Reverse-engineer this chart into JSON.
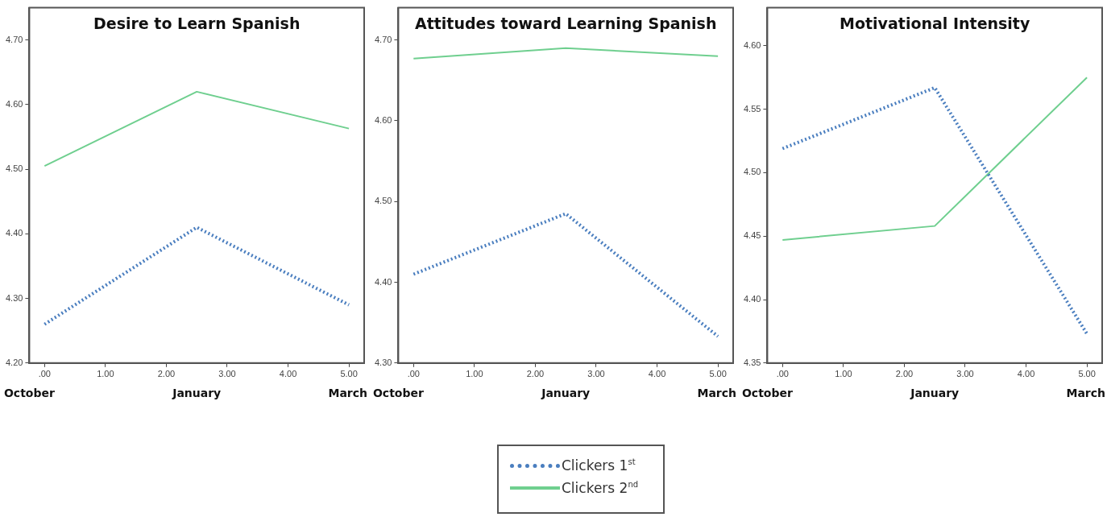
{
  "chart_data": [
    {
      "type": "line",
      "title": "Desire to Learn Spanish",
      "x": [
        0,
        2.5,
        5
      ],
      "xlim": [
        -0.25,
        5.25
      ],
      "xticks": [
        {
          "value": 0,
          "label": ".00"
        },
        {
          "value": 1,
          "label": "1.00"
        },
        {
          "value": 2,
          "label": "2.00"
        },
        {
          "value": 3,
          "label": "3.00"
        },
        {
          "value": 4,
          "label": "4.00"
        },
        {
          "value": 5,
          "label": "5.00"
        }
      ],
      "ylim": [
        4.2,
        4.75
      ],
      "yticks": [
        {
          "value": 4.2,
          "label": "4.20"
        },
        {
          "value": 4.3,
          "label": "4.30"
        },
        {
          "value": 4.4,
          "label": "4.40"
        },
        {
          "value": 4.5,
          "label": "4.50"
        },
        {
          "value": 4.6,
          "label": "4.60"
        },
        {
          "value": 4.7,
          "label": "4.70"
        }
      ],
      "grid": false,
      "marker": "none",
      "annotations": [
        "October",
        "January",
        "March"
      ],
      "series": [
        {
          "color": "#4a7ebf",
          "line_style": "dotted",
          "values": [
            4.26,
            4.41,
            4.29
          ]
        },
        {
          "color": "#6fcf8f",
          "line_style": "solid",
          "values": [
            4.505,
            4.62,
            4.563
          ]
        }
      ]
    },
    {
      "type": "line",
      "title": "Attitudes toward Learning Spanish",
      "x": [
        0,
        2.5,
        5
      ],
      "xlim": [
        -0.25,
        5.25
      ],
      "xticks": [
        {
          "value": 0,
          "label": ".00"
        },
        {
          "value": 1,
          "label": "1.00"
        },
        {
          "value": 2,
          "label": "2.00"
        },
        {
          "value": 3,
          "label": "3.00"
        },
        {
          "value": 4,
          "label": "4.00"
        },
        {
          "value": 5,
          "label": "5.00"
        }
      ],
      "ylim": [
        4.3,
        4.74
      ],
      "yticks": [
        {
          "value": 4.3,
          "label": "4.30"
        },
        {
          "value": 4.4,
          "label": "4.40"
        },
        {
          "value": 4.5,
          "label": "4.50"
        },
        {
          "value": 4.6,
          "label": "4.60"
        },
        {
          "value": 4.7,
          "label": "4.70"
        }
      ],
      "grid": false,
      "marker": "none",
      "annotations": [
        "October",
        "January",
        "March"
      ],
      "series": [
        {
          "color": "#4a7ebf",
          "line_style": "dotted",
          "values": [
            4.41,
            4.485,
            4.333
          ]
        },
        {
          "color": "#6fcf8f",
          "line_style": "solid",
          "values": [
            4.677,
            4.69,
            4.68
          ]
        }
      ]
    },
    {
      "type": "line",
      "title": "Motivational Intensity",
      "x": [
        0,
        2.5,
        5
      ],
      "xlim": [
        -0.25,
        5.25
      ],
      "xticks": [
        {
          "value": 0,
          "label": ".00"
        },
        {
          "value": 1,
          "label": "1.00"
        },
        {
          "value": 2,
          "label": "2.00"
        },
        {
          "value": 3,
          "label": "3.00"
        },
        {
          "value": 4,
          "label": "4.00"
        },
        {
          "value": 5,
          "label": "5.00"
        }
      ],
      "ylim": [
        4.35,
        4.63
      ],
      "yticks": [
        {
          "value": 4.35,
          "label": "4.35"
        },
        {
          "value": 4.4,
          "label": "4.40"
        },
        {
          "value": 4.45,
          "label": "4.45"
        },
        {
          "value": 4.5,
          "label": "4.50"
        },
        {
          "value": 4.55,
          "label": "4.55"
        },
        {
          "value": 4.6,
          "label": "4.60"
        }
      ],
      "grid": false,
      "marker": "none",
      "legend": "bottom",
      "annotations": [
        "October",
        "January",
        "March"
      ],
      "series": [
        {
          "name": "Clickers 1$^{st}$",
          "color": "#4a7ebf",
          "line_style": "dotted",
          "values": [
            4.519,
            4.567,
            4.373
          ]
        },
        {
          "name": "Clickers 2$^{nd}$",
          "color": "#6fcf8f",
          "line_style": "solid",
          "values": [
            4.447,
            4.458,
            4.575
          ]
        }
      ]
    }
  ]
}
